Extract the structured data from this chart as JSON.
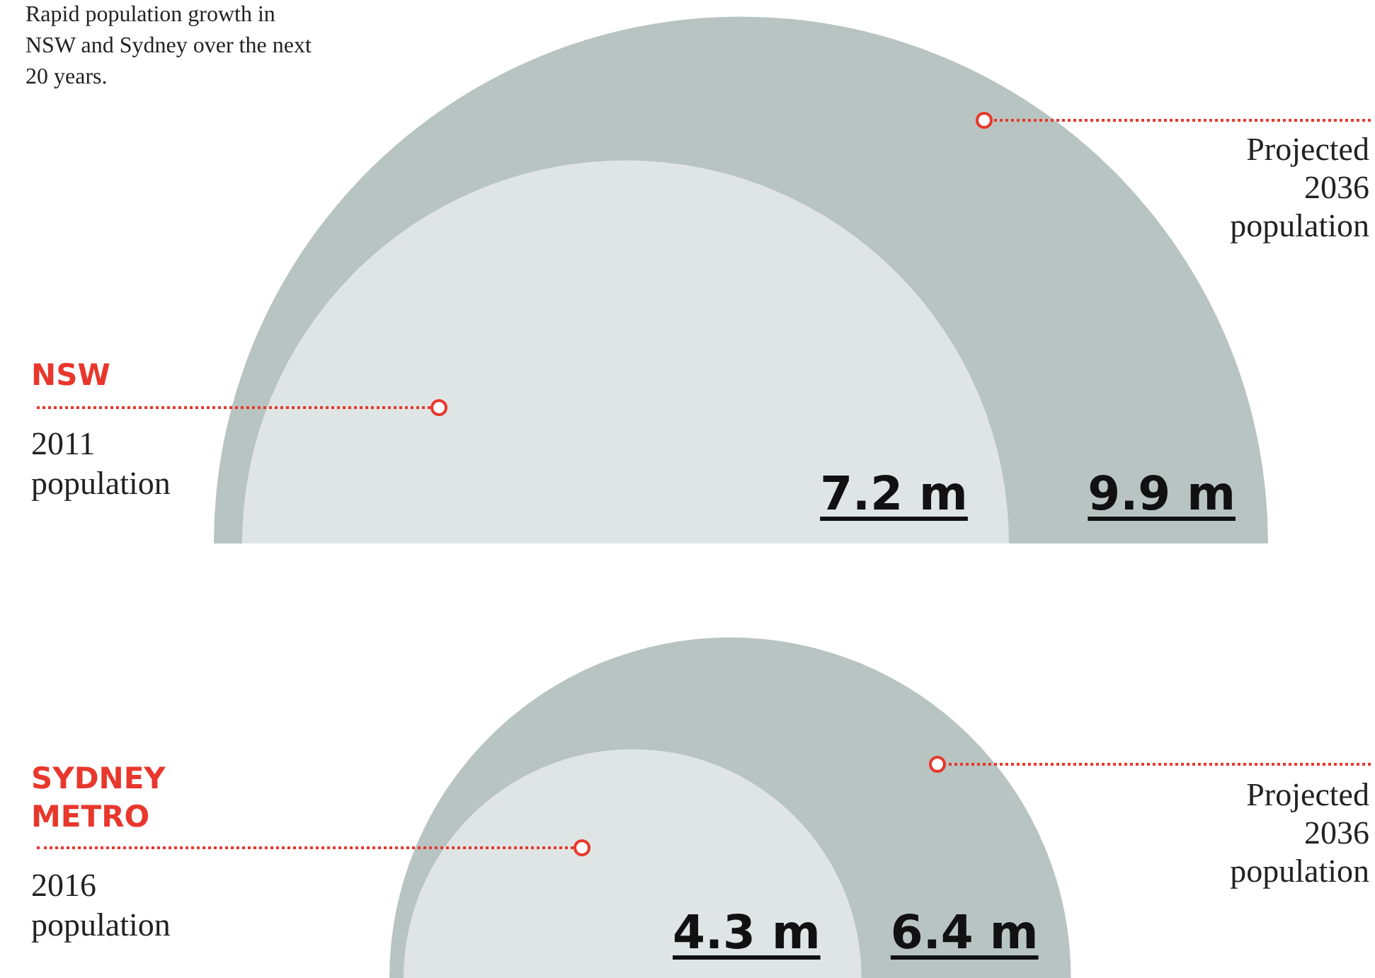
{
  "chart_data": [
    {
      "type": "other",
      "title": "NSW",
      "annotations": [
        "Rapid population growth in NSW and Sydney over the next 20 years."
      ],
      "categories": [
        "2011 population",
        "Projected 2036 population"
      ],
      "values": [
        7.2,
        9.9
      ],
      "value_labels": [
        "7.2 m",
        "9.9 m"
      ],
      "colors": [
        "#dfe5e4",
        "#b8c4c1"
      ]
    },
    {
      "type": "other",
      "title": "SYDNEY METRO",
      "categories": [
        "2016 population",
        "Projected 2036 population"
      ],
      "values": [
        4.3,
        6.4
      ],
      "value_labels": [
        "4.3 m",
        "6.4 m"
      ],
      "colors": [
        "#dfe5e4",
        "#b8c4c1"
      ]
    }
  ]
}
